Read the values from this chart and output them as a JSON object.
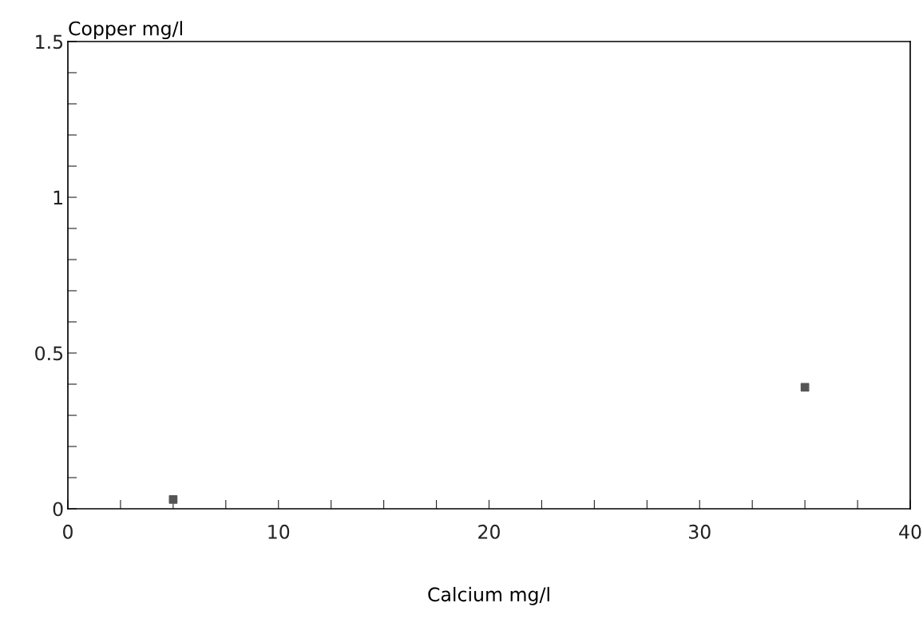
{
  "chart_data": {
    "type": "scatter",
    "xlabel": "Calcium mg/l",
    "ylabel": "Copper mg/l",
    "x": [
      5,
      35
    ],
    "values": [
      0.03,
      0.39
    ],
    "color": "#555555",
    "marker": "square",
    "xlim": [
      0,
      40
    ],
    "ylim": [
      0,
      1.5
    ],
    "xticks": [
      0,
      {
        "value": 2.5,
        "label": null
      },
      {
        "value": 5,
        "label": null
      },
      {
        "value": 7.5,
        "label": null
      },
      10,
      {
        "value": 12.5,
        "label": null
      },
      {
        "value": 15,
        "label": null
      },
      {
        "value": 17.5,
        "label": null
      },
      20,
      {
        "value": 22.5,
        "label": null
      },
      {
        "value": 25,
        "label": null
      },
      {
        "value": 27.5,
        "label": null
      },
      30,
      {
        "value": 32.5,
        "label": null
      },
      {
        "value": 35,
        "label": null
      },
      {
        "value": 37.5,
        "label": null
      },
      40
    ],
    "yticks": [
      0,
      {
        "value": 0.1,
        "label": null
      },
      {
        "value": 0.2,
        "label": null
      },
      {
        "value": 0.3,
        "label": null
      },
      {
        "value": 0.4,
        "label": null
      },
      0.5,
      {
        "value": 0.6,
        "label": null
      },
      {
        "value": 0.7,
        "label": null
      },
      {
        "value": 0.8,
        "label": null
      },
      {
        "value": 0.9,
        "label": null
      },
      1,
      {
        "value": 1.1,
        "label": null
      },
      {
        "value": 1.2,
        "label": null
      },
      {
        "value": 1.3,
        "label": null
      },
      {
        "value": 1.4,
        "label": null
      },
      1.5
    ],
    "grid": false,
    "legend": false
  }
}
